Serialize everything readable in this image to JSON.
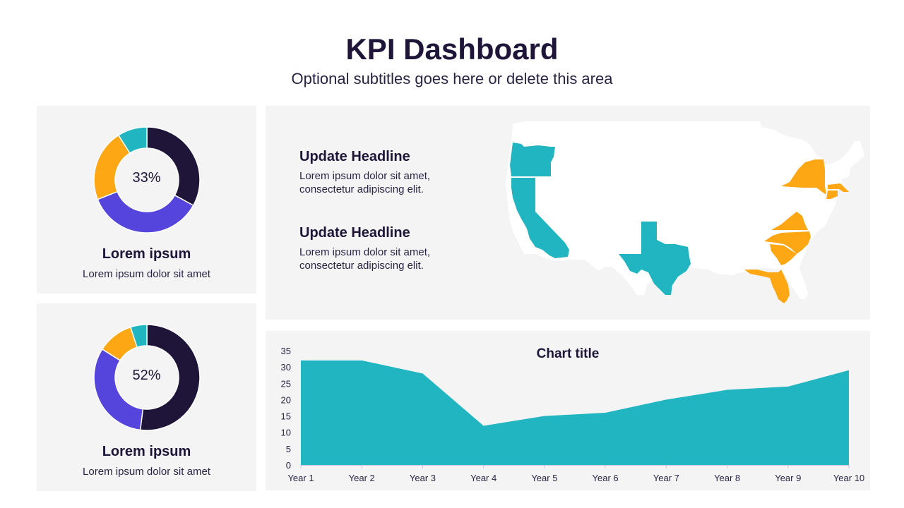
{
  "header": {
    "title": "KPI Dashboard",
    "subtitle": "Optional subtitles goes here or delete this area"
  },
  "colors": {
    "dark": "#1e1538",
    "purple": "#5645dd",
    "orange": "#fca713",
    "teal": "#20b5c1",
    "panel": "#f4f4f4"
  },
  "kpis": [
    {
      "center_label": "33%",
      "title": "Lorem ipsum",
      "text": "Lorem ipsum dolor sit amet",
      "segments": [
        {
          "color": "#1e1538",
          "value": 33
        },
        {
          "color": "#5645dd",
          "value": 36
        },
        {
          "color": "#fca713",
          "value": 22
        },
        {
          "color": "#20b5c1",
          "value": 9
        }
      ]
    },
    {
      "center_label": "52%",
      "title": "Lorem ipsum",
      "text": "Lorem ipsum dolor sit amet",
      "segments": [
        {
          "color": "#1e1538",
          "value": 52
        },
        {
          "color": "#5645dd",
          "value": 32
        },
        {
          "color": "#fca713",
          "value": 11
        },
        {
          "color": "#20b5c1",
          "value": 5
        }
      ]
    }
  ],
  "map_section": {
    "items": [
      {
        "headline": "Update Headline",
        "line1": "Lorem ipsum dolor sit amet,",
        "line2": "consectetur adipiscing elit."
      },
      {
        "headline": "Update Headline",
        "line1": "Lorem ipsum dolor sit amet,",
        "line2": "consectetur adipiscing elit."
      }
    ],
    "highlighted_states": {
      "teal": [
        "Oregon",
        "California",
        "Texas"
      ],
      "orange": [
        "New York",
        "Massachusetts",
        "Connecticut",
        "Virginia",
        "North Carolina",
        "South Carolina",
        "Florida"
      ]
    }
  },
  "chart_data": [
    {
      "type": "pie",
      "title": "33%",
      "labels": [
        "dark",
        "purple",
        "orange",
        "teal"
      ],
      "values": [
        33,
        36,
        22,
        9
      ]
    },
    {
      "type": "pie",
      "title": "52%",
      "labels": [
        "dark",
        "purple",
        "orange",
        "teal"
      ],
      "values": [
        52,
        32,
        11,
        5
      ]
    },
    {
      "type": "area",
      "title": "Chart title",
      "xlabel": "",
      "ylabel": "",
      "categories": [
        "Year 1",
        "Year 2",
        "Year 3",
        "Year 4",
        "Year 5",
        "Year 6",
        "Year 7",
        "Year 8",
        "Year 9",
        "Year 10"
      ],
      "values": [
        32,
        32,
        28,
        12,
        15,
        16,
        20,
        23,
        24,
        29
      ],
      "ylim": [
        0,
        35
      ],
      "yticks": [
        "0",
        "5",
        "10",
        "15",
        "20",
        "25",
        "30",
        "35"
      ],
      "grid": false,
      "color": "#20b5c1"
    }
  ]
}
